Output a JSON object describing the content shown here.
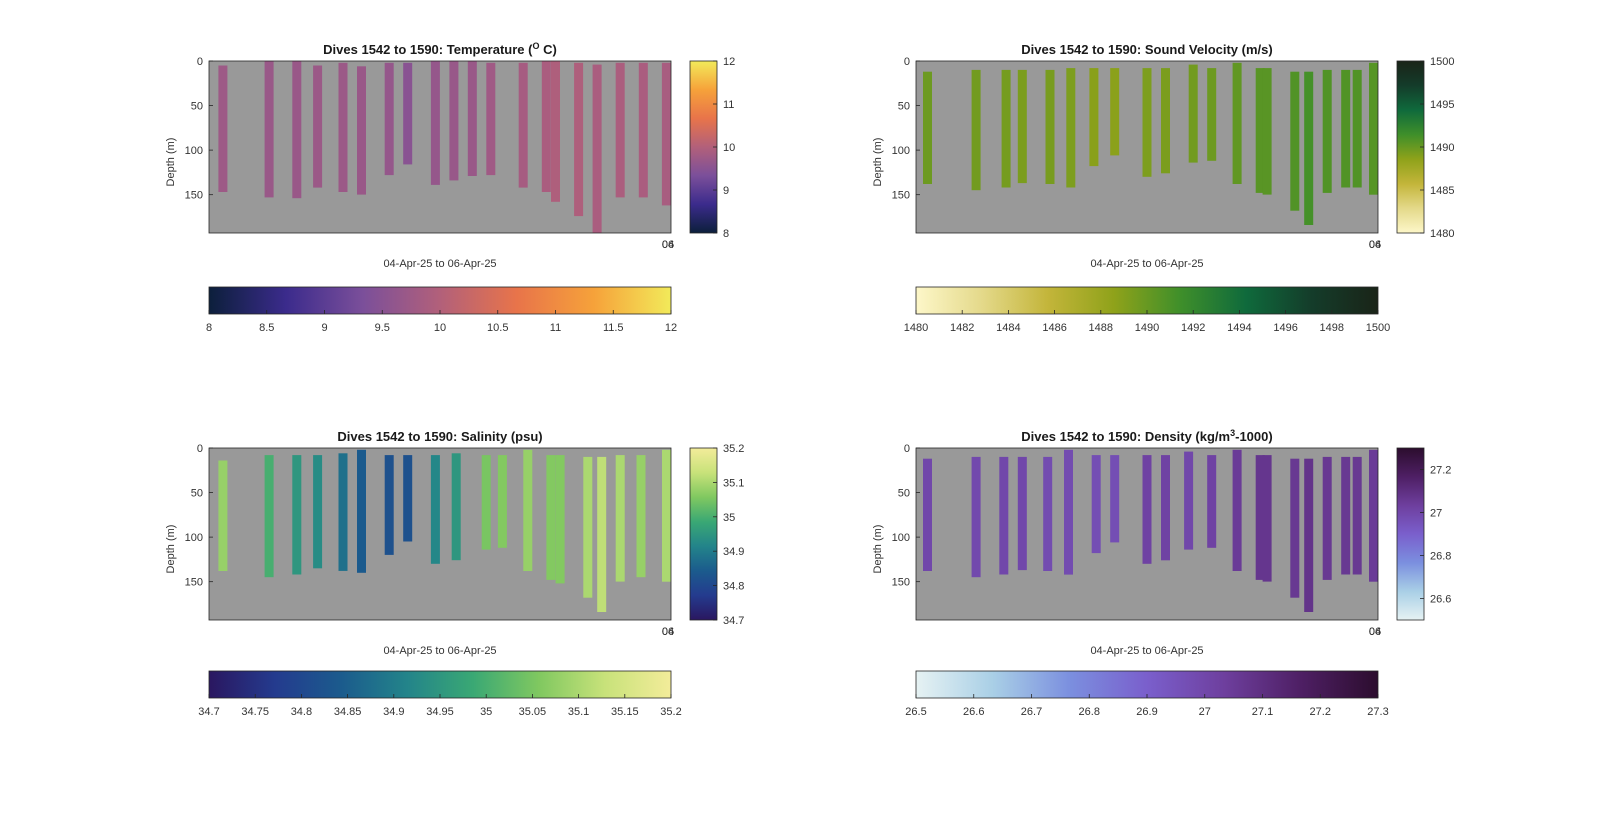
{
  "figure": {
    "x_axis_label": "04-Apr-25 to 06-Apr-25",
    "y_axis_label": "Depth (m)",
    "x_corner_ticks": [
      "04",
      "06"
    ],
    "plot_background": "#999999"
  },
  "chart_data": [
    {
      "id": "temperature",
      "type": "heatmap",
      "title": "Dives 1542 to 1590: Temperature (",
      "title_sup": "O",
      "title_end": " C)",
      "ylabel": "Depth (m)",
      "xlabel": "04-Apr-25 to 06-Apr-25",
      "ylim": [
        0,
        193
      ],
      "y_reversed": true,
      "y_ticks": [
        0,
        50,
        100,
        150
      ],
      "colormap": [
        "#0c1f3b",
        "#3b2b8c",
        "#7b4f9a",
        "#b2607a",
        "#e8744a",
        "#f6a23a",
        "#f2ea5a"
      ],
      "color_range": [
        8,
        12
      ],
      "colorbar_right_ticks": [
        8,
        9,
        10,
        11,
        12
      ],
      "colorbar_bottom_ticks": [
        8,
        8.5,
        9,
        9.5,
        10,
        10.5,
        11,
        11.5,
        12
      ],
      "dives": [
        {
          "x": 0.03,
          "top": 5,
          "bottom": 147,
          "value": 9.75
        },
        {
          "x": 0.13,
          "top": 0,
          "bottom": 153,
          "value": 9.7
        },
        {
          "x": 0.19,
          "top": 0,
          "bottom": 154,
          "value": 9.7
        },
        {
          "x": 0.235,
          "top": 5,
          "bottom": 142,
          "value": 9.72
        },
        {
          "x": 0.29,
          "top": 2,
          "bottom": 147,
          "value": 9.72
        },
        {
          "x": 0.33,
          "top": 6,
          "bottom": 150,
          "value": 9.7
        },
        {
          "x": 0.39,
          "top": 2,
          "bottom": 128,
          "value": 9.65
        },
        {
          "x": 0.43,
          "top": 2,
          "bottom": 116,
          "value": 9.5
        },
        {
          "x": 0.49,
          "top": 0,
          "bottom": 139,
          "value": 9.65
        },
        {
          "x": 0.53,
          "top": 0,
          "bottom": 134,
          "value": 9.68
        },
        {
          "x": 0.57,
          "top": 0,
          "bottom": 129,
          "value": 9.7
        },
        {
          "x": 0.61,
          "top": 2,
          "bottom": 128,
          "value": 9.78
        },
        {
          "x": 0.68,
          "top": 2,
          "bottom": 142,
          "value": 9.85
        },
        {
          "x": 0.73,
          "top": 0,
          "bottom": 147,
          "value": 9.9
        },
        {
          "x": 0.75,
          "top": 0,
          "bottom": 158,
          "value": 9.95
        },
        {
          "x": 0.8,
          "top": 2,
          "bottom": 174,
          "value": 9.95
        },
        {
          "x": 0.84,
          "top": 4,
          "bottom": 193,
          "value": 9.9
        },
        {
          "x": 0.89,
          "top": 2,
          "bottom": 153,
          "value": 9.92
        },
        {
          "x": 0.94,
          "top": 2,
          "bottom": 153,
          "value": 9.9
        },
        {
          "x": 0.99,
          "top": 2,
          "bottom": 162,
          "value": 9.88
        }
      ]
    },
    {
      "id": "sound_velocity",
      "type": "heatmap",
      "title": "Dives 1542 to 1590: Sound Velocity (m/s)",
      "title_sup": "",
      "title_end": "",
      "ylabel": "Depth (m)",
      "xlabel": "04-Apr-25 to 06-Apr-25",
      "ylim": [
        0,
        193
      ],
      "y_reversed": true,
      "y_ticks": [
        0,
        50,
        100,
        150
      ],
      "colormap": [
        "#fdf7c9",
        "#e4d98a",
        "#c3b53a",
        "#8fa21a",
        "#3f8f2a",
        "#0f6a3c",
        "#143c2a",
        "#1a2418"
      ],
      "color_range": [
        1480,
        1500
      ],
      "colorbar_right_ticks": [
        1480,
        1485,
        1490,
        1495,
        1500
      ],
      "colorbar_bottom_ticks": [
        1480,
        1482,
        1484,
        1486,
        1488,
        1490,
        1492,
        1494,
        1496,
        1498,
        1500
      ],
      "dives": [
        {
          "x": 0.025,
          "top": 12,
          "bottom": 138,
          "value": 1489.8
        },
        {
          "x": 0.13,
          "top": 10,
          "bottom": 145,
          "value": 1489.6
        },
        {
          "x": 0.195,
          "top": 10,
          "bottom": 142,
          "value": 1489.5
        },
        {
          "x": 0.23,
          "top": 10,
          "bottom": 137,
          "value": 1489.3
        },
        {
          "x": 0.29,
          "top": 10,
          "bottom": 138,
          "value": 1489.4
        },
        {
          "x": 0.335,
          "top": 8,
          "bottom": 142,
          "value": 1489.2
        },
        {
          "x": 0.385,
          "top": 8,
          "bottom": 118,
          "value": 1488.8
        },
        {
          "x": 0.43,
          "top": 8,
          "bottom": 106,
          "value": 1488.7
        },
        {
          "x": 0.5,
          "top": 8,
          "bottom": 130,
          "value": 1489.2
        },
        {
          "x": 0.54,
          "top": 8,
          "bottom": 126,
          "value": 1489.3
        },
        {
          "x": 0.6,
          "top": 4,
          "bottom": 114,
          "value": 1489.6
        },
        {
          "x": 0.64,
          "top": 8,
          "bottom": 112,
          "value": 1489.8
        },
        {
          "x": 0.695,
          "top": 2,
          "bottom": 138,
          "value": 1490.2
        },
        {
          "x": 0.745,
          "top": 8,
          "bottom": 148,
          "value": 1490.5
        },
        {
          "x": 0.76,
          "top": 8,
          "bottom": 150,
          "value": 1490.5
        },
        {
          "x": 0.82,
          "top": 12,
          "bottom": 168,
          "value": 1490.8
        },
        {
          "x": 0.85,
          "top": 12,
          "bottom": 184,
          "value": 1491.2
        },
        {
          "x": 0.89,
          "top": 10,
          "bottom": 148,
          "value": 1490.8
        },
        {
          "x": 0.93,
          "top": 10,
          "bottom": 142,
          "value": 1490.8
        },
        {
          "x": 0.955,
          "top": 10,
          "bottom": 142,
          "value": 1490.8
        },
        {
          "x": 0.995,
          "top": 2,
          "bottom": 150,
          "value": 1490.6
        }
      ]
    },
    {
      "id": "salinity",
      "type": "heatmap",
      "title": "Dives 1542 to 1590: Salinity (psu)",
      "title_sup": "",
      "title_end": "",
      "ylabel": "Depth (m)",
      "xlabel": "04-Apr-25 to 06-Apr-25",
      "ylim": [
        0,
        193
      ],
      "y_reversed": true,
      "y_ticks": [
        0,
        50,
        100,
        150
      ],
      "colormap": [
        "#2a1760",
        "#243b8e",
        "#1b5b8d",
        "#23848a",
        "#3aa874",
        "#80c860",
        "#c8e27a",
        "#f3ec9a"
      ],
      "color_range": [
        34.7,
        35.2
      ],
      "colorbar_right_ticks": [
        34.7,
        34.8,
        34.9,
        35,
        35.1,
        35.2
      ],
      "colorbar_bottom_ticks": [
        34.7,
        34.75,
        34.8,
        34.85,
        34.9,
        34.95,
        35,
        35.05,
        35.1,
        35.15,
        35.2
      ],
      "dives": [
        {
          "x": 0.03,
          "top": 14,
          "bottom": 138,
          "value": 35.08
        },
        {
          "x": 0.13,
          "top": 8,
          "bottom": 145,
          "value": 35.0
        },
        {
          "x": 0.19,
          "top": 8,
          "bottom": 142,
          "value": 34.95
        },
        {
          "x": 0.235,
          "top": 8,
          "bottom": 135,
          "value": 34.93
        },
        {
          "x": 0.29,
          "top": 6,
          "bottom": 138,
          "value": 34.88
        },
        {
          "x": 0.33,
          "top": 2,
          "bottom": 140,
          "value": 34.84
        },
        {
          "x": 0.39,
          "top": 8,
          "bottom": 120,
          "value": 34.82
        },
        {
          "x": 0.43,
          "top": 8,
          "bottom": 105,
          "value": 34.82
        },
        {
          "x": 0.49,
          "top": 8,
          "bottom": 130,
          "value": 34.92
        },
        {
          "x": 0.535,
          "top": 6,
          "bottom": 126,
          "value": 34.95
        },
        {
          "x": 0.6,
          "top": 8,
          "bottom": 114,
          "value": 35.05
        },
        {
          "x": 0.635,
          "top": 8,
          "bottom": 112,
          "value": 35.06
        },
        {
          "x": 0.69,
          "top": 2,
          "bottom": 138,
          "value": 35.08
        },
        {
          "x": 0.74,
          "top": 8,
          "bottom": 148,
          "value": 35.06
        },
        {
          "x": 0.76,
          "top": 8,
          "bottom": 152,
          "value": 35.06
        },
        {
          "x": 0.82,
          "top": 10,
          "bottom": 168,
          "value": 35.1
        },
        {
          "x": 0.85,
          "top": 10,
          "bottom": 184,
          "value": 35.12
        },
        {
          "x": 0.89,
          "top": 8,
          "bottom": 150,
          "value": 35.1
        },
        {
          "x": 0.935,
          "top": 8,
          "bottom": 145,
          "value": 35.08
        },
        {
          "x": 0.995,
          "top": 2,
          "bottom": 150,
          "value": 35.1
        }
      ]
    },
    {
      "id": "density",
      "type": "heatmap",
      "title": "Dives 1542 to 1590: Density (kg/m",
      "title_sup": "3",
      "title_end": "-1000)",
      "ylabel": "Depth (m)",
      "xlabel": "04-Apr-25 to 06-Apr-25",
      "ylim": [
        0,
        193
      ],
      "y_reversed": true,
      "y_ticks": [
        0,
        50,
        100,
        150
      ],
      "colormap": [
        "#e6f2f3",
        "#a9cfe6",
        "#7b8fdf",
        "#7a5fcc",
        "#6e3f9e",
        "#4e1f64",
        "#2c0d2e"
      ],
      "color_range": [
        26.5,
        27.3
      ],
      "colorbar_right_ticks": [
        26.6,
        26.8,
        27,
        27.2
      ],
      "colorbar_bottom_ticks": [
        26.5,
        26.6,
        26.7,
        26.8,
        26.9,
        27,
        27.1,
        27.2,
        27.3
      ],
      "dives": [
        {
          "x": 0.025,
          "top": 12,
          "bottom": 138,
          "value": 27.0
        },
        {
          "x": 0.13,
          "top": 10,
          "bottom": 145,
          "value": 26.99
        },
        {
          "x": 0.19,
          "top": 10,
          "bottom": 142,
          "value": 27.0
        },
        {
          "x": 0.23,
          "top": 10,
          "bottom": 137,
          "value": 27.0
        },
        {
          "x": 0.285,
          "top": 10,
          "bottom": 138,
          "value": 26.98
        },
        {
          "x": 0.33,
          "top": 2,
          "bottom": 142,
          "value": 26.98
        },
        {
          "x": 0.39,
          "top": 8,
          "bottom": 118,
          "value": 26.97
        },
        {
          "x": 0.43,
          "top": 8,
          "bottom": 106,
          "value": 26.97
        },
        {
          "x": 0.5,
          "top": 8,
          "bottom": 130,
          "value": 27.02
        },
        {
          "x": 0.54,
          "top": 8,
          "bottom": 126,
          "value": 27.02
        },
        {
          "x": 0.59,
          "top": 4,
          "bottom": 114,
          "value": 27.0
        },
        {
          "x": 0.64,
          "top": 8,
          "bottom": 112,
          "value": 27.02
        },
        {
          "x": 0.695,
          "top": 2,
          "bottom": 138,
          "value": 27.05
        },
        {
          "x": 0.745,
          "top": 8,
          "bottom": 148,
          "value": 27.07
        },
        {
          "x": 0.76,
          "top": 8,
          "bottom": 150,
          "value": 27.07
        },
        {
          "x": 0.82,
          "top": 12,
          "bottom": 168,
          "value": 27.06
        },
        {
          "x": 0.85,
          "top": 12,
          "bottom": 184,
          "value": 27.08
        },
        {
          "x": 0.89,
          "top": 10,
          "bottom": 148,
          "value": 27.06
        },
        {
          "x": 0.93,
          "top": 10,
          "bottom": 142,
          "value": 27.06
        },
        {
          "x": 0.955,
          "top": 10,
          "bottom": 142,
          "value": 27.06
        },
        {
          "x": 0.995,
          "top": 2,
          "bottom": 150,
          "value": 27.05
        }
      ]
    }
  ]
}
